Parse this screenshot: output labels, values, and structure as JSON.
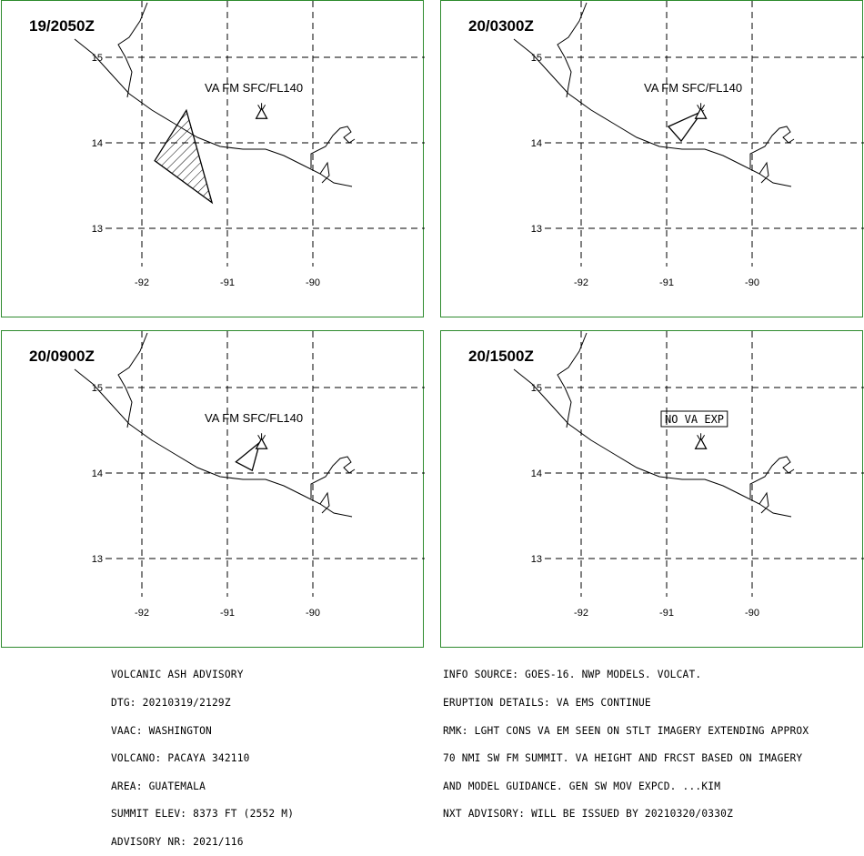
{
  "panels": [
    {
      "time": "19/2050Z",
      "label": "VA FM SFC/FL140",
      "boxed": false,
      "polygon": [
        [
          -91.48,
          14.38
        ],
        [
          -91.85,
          13.79
        ],
        [
          -91.18,
          13.3
        ],
        [
          -91.48,
          14.38
        ]
      ],
      "hatched": true
    },
    {
      "time": "20/0300Z",
      "label": "VA FM SFC/FL140",
      "boxed": false,
      "polygon": [
        [
          -90.58,
          14.37
        ],
        [
          -90.98,
          14.19
        ],
        [
          -90.83,
          14.02
        ],
        [
          -90.58,
          14.37
        ]
      ],
      "hatched": false
    },
    {
      "time": "20/0900Z",
      "label": "VA FM SFC/FL140",
      "boxed": false,
      "polygon": [
        [
          -90.62,
          14.36
        ],
        [
          -90.9,
          14.13
        ],
        [
          -90.71,
          14.03
        ],
        [
          -90.62,
          14.36
        ]
      ],
      "hatched": false
    },
    {
      "time": "20/1500Z",
      "label": "NO VA EXP",
      "boxed": true,
      "polygon": [],
      "hatched": false
    }
  ],
  "map": {
    "volcano": [
      -90.6,
      14.38
    ],
    "lat_ticks": [
      "15",
      "14",
      "13"
    ],
    "lon_ticks": [
      "-92",
      "-91",
      "-90"
    ],
    "colors": {
      "border": "#2e8b2e",
      "lines": "#000000"
    }
  },
  "advisory_left": [
    "VOLCANIC ASH ADVISORY",
    "DTG: 20210319/2129Z",
    "VAAC: WASHINGTON",
    "VOLCANO: PACAYA 342110",
    "AREA: GUATEMALA",
    "SUMMIT ELEV: 8373 FT (2552 M)",
    "ADVISORY NR: 2021/116"
  ],
  "advisory_right": [
    "INFO SOURCE: GOES-16. NWP MODELS. VOLCAT.",
    "ERUPTION DETAILS: VA EMS CONTINUE",
    "RMK: LGHT CONS VA EM SEEN ON STLT IMAGERY EXTENDING APPROX",
    "70 NMI SW FM SUMMIT. VA HEIGHT AND FRCST BASED ON IMAGERY",
    "AND MODEL GUIDANCE. GEN SW MOV EXPCD. ...KIM",
    "NXT ADVISORY: WILL BE ISSUED BY 20210320/0330Z"
  ]
}
